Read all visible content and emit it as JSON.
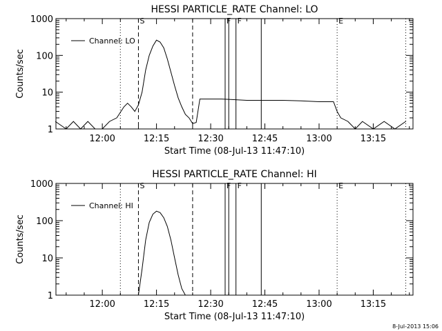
{
  "chart_data": [
    {
      "type": "line",
      "title": "HESSI PARTICLE_RATE Channel: LO",
      "xlabel": "Start Time (08-Jul-13 11:47:10)",
      "ylabel": "Counts/sec",
      "y_scale": "log",
      "ylim": [
        1,
        1000
      ],
      "y_tick_labels": [
        "1",
        "10",
        "100",
        "1000"
      ],
      "x_tick_labels": [
        "12:00",
        "12:15",
        "12:30",
        "12:45",
        "13:00",
        "13:15"
      ],
      "xlim": [
        "11:47:10",
        "13:26:00"
      ],
      "grid": false,
      "legend": {
        "position": "top-left",
        "entries": [
          "Channel: LO"
        ]
      },
      "series": [
        {
          "name": "Channel: LO",
          "x": [
            "11:47",
            "11:50",
            "11:52",
            "11:54",
            "11:56",
            "11:58",
            "12:00",
            "12:02",
            "12:04",
            "12:06",
            "12:07",
            "12:08",
            "12:09",
            "12:10",
            "12:11",
            "12:12",
            "12:13",
            "12:14",
            "12:15",
            "12:16",
            "12:17",
            "12:18",
            "12:19",
            "12:20",
            "12:21",
            "12:22",
            "12:23",
            "12:24",
            "12:25",
            "12:26",
            "12:27",
            "12:28",
            "12:29",
            "12:30",
            "12:33",
            "12:36",
            "12:40",
            "12:45",
            "12:50",
            "12:55",
            "13:00",
            "13:04",
            "13:05",
            "13:06",
            "13:08",
            "13:10",
            "13:12",
            "13:15",
            "13:18",
            "13:21",
            "13:24"
          ],
          "values": [
            1.6,
            1,
            1.6,
            1,
            1.6,
            1,
            1,
            1.6,
            2,
            4,
            5,
            4,
            3,
            4.5,
            10,
            40,
            100,
            180,
            260,
            230,
            160,
            80,
            35,
            15,
            7,
            4,
            2.5,
            2,
            1.4,
            1.5,
            6.5,
            6.5,
            6.5,
            6.5,
            6.5,
            6.3,
            6,
            6,
            6,
            5.8,
            5.5,
            5.5,
            3,
            2,
            1.6,
            1,
            1.6,
            1,
            1.6,
            1,
            1.6
          ]
        }
      ],
      "vertical_markers": [
        {
          "time": "12:05",
          "style": "dotted"
        },
        {
          "time": "12:10",
          "style": "dashed",
          "label": "S"
        },
        {
          "time": "12:25",
          "style": "dashed"
        },
        {
          "time": "12:34",
          "style": "solid",
          "label": "F"
        },
        {
          "time": "12:35",
          "style": "solid"
        },
        {
          "time": "12:37",
          "style": "solid",
          "label": "F"
        },
        {
          "time": "12:44",
          "style": "solid"
        },
        {
          "time": "13:05",
          "style": "dotted",
          "label": "E"
        },
        {
          "time": "13:24",
          "style": "dotted"
        }
      ]
    },
    {
      "type": "line",
      "title": "HESSI PARTICLE_RATE Channel: HI",
      "xlabel": "Start Time (08-Jul-13 11:47:10)",
      "ylabel": "Counts/sec",
      "y_scale": "log",
      "ylim": [
        1,
        1000
      ],
      "y_tick_labels": [
        "1",
        "10",
        "100",
        "1000"
      ],
      "x_tick_labels": [
        "12:00",
        "12:15",
        "12:30",
        "12:45",
        "13:00",
        "13:15"
      ],
      "xlim": [
        "11:47:10",
        "13:26:00"
      ],
      "grid": false,
      "legend": {
        "position": "top-left",
        "entries": [
          "Channel: HI"
        ]
      },
      "series": [
        {
          "name": "Channel: HI",
          "x": [
            "12:10",
            "12:11",
            "12:12",
            "12:13",
            "12:14",
            "12:15",
            "12:16",
            "12:17",
            "12:18",
            "12:19",
            "12:20",
            "12:21",
            "12:22",
            "12:23"
          ],
          "values": [
            1,
            5,
            30,
            90,
            150,
            180,
            165,
            120,
            70,
            30,
            10,
            3.5,
            1.5,
            1
          ]
        }
      ],
      "vertical_markers": [
        {
          "time": "12:05",
          "style": "dotted"
        },
        {
          "time": "12:10",
          "style": "dashed",
          "label": "S"
        },
        {
          "time": "12:25",
          "style": "dashed"
        },
        {
          "time": "12:34",
          "style": "solid",
          "label": "F"
        },
        {
          "time": "12:35",
          "style": "solid"
        },
        {
          "time": "12:37",
          "style": "solid",
          "label": "F"
        },
        {
          "time": "12:44",
          "style": "solid"
        },
        {
          "time": "13:05",
          "style": "dotted",
          "label": "E"
        },
        {
          "time": "13:24",
          "style": "dotted"
        }
      ]
    }
  ],
  "footer": {
    "timestamp": "8-Jul-2013 15:06"
  }
}
